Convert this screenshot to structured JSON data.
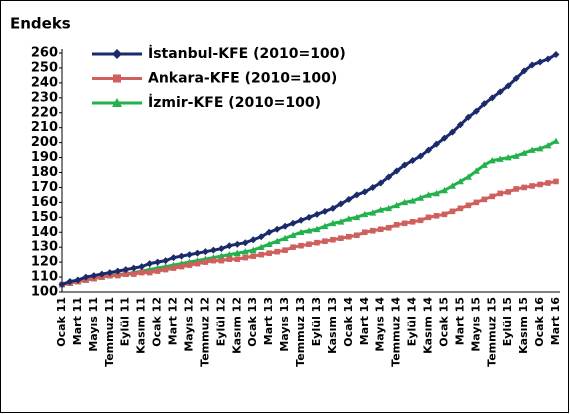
{
  "chart_data": {
    "type": "line",
    "title": "Endeks",
    "categories": [
      "Ocak 11",
      null,
      "Mart 11",
      null,
      "Mayıs 11",
      null,
      "Temmuz 11",
      null,
      "Eylül 11",
      null,
      "Kasım 11",
      null,
      "Ocak 12",
      null,
      "Mart 12",
      null,
      "Mayıs 12",
      null,
      "Temmuz 12",
      null,
      "Eylül 12",
      null,
      "Kasım 12",
      null,
      "Ocak 13",
      null,
      "Mart 13",
      null,
      "Mayıs 13",
      null,
      "Temmuz 13",
      null,
      "Eylül 13",
      null,
      "Kasım 13",
      null,
      "Ocak 14",
      null,
      "Mart 14",
      null,
      "Mayıs 14",
      null,
      "Temmuz 14",
      null,
      "Eylül 14",
      null,
      "Kasım 14",
      null,
      "Ocak 15",
      null,
      "Mart 15",
      null,
      "Mayıs 15",
      null,
      "Temmuz 15",
      null,
      "Eylül 15",
      null,
      "Kasım 15",
      null,
      "Ocak 16",
      null,
      "Mart 16"
    ],
    "series": [
      {
        "name": "İstanbul-KFE (2010=100)",
        "color": "#1b2a6b",
        "marker": "diamond",
        "values": [
          105,
          107,
          108,
          110,
          111,
          112,
          113,
          114,
          115,
          116,
          117,
          119,
          120,
          121,
          123,
          124,
          125,
          126,
          127,
          128,
          129,
          131,
          132,
          133,
          135,
          137,
          140,
          142,
          144,
          146,
          148,
          150,
          152,
          154,
          156,
          159,
          162,
          165,
          167,
          170,
          173,
          177,
          181,
          185,
          188,
          191,
          195,
          199,
          203,
          207,
          212,
          217,
          221,
          226,
          230,
          234,
          238,
          243,
          248,
          252,
          254,
          256,
          259
        ]
      },
      {
        "name": "Ankara-KFE (2010=100)",
        "color": "#d0605e",
        "marker": "square",
        "values": [
          105,
          106,
          107,
          108,
          109,
          110,
          111,
          111,
          112,
          112,
          113,
          113,
          114,
          115,
          116,
          117,
          118,
          119,
          120,
          121,
          121,
          122,
          122,
          123,
          124,
          125,
          126,
          127,
          128,
          130,
          131,
          132,
          133,
          134,
          135,
          136,
          137,
          138,
          140,
          141,
          142,
          143,
          145,
          146,
          147,
          148,
          150,
          151,
          152,
          154,
          156,
          158,
          160,
          162,
          164,
          166,
          167,
          169,
          170,
          171,
          172,
          173,
          174
        ]
      },
      {
        "name": "İzmir-KFE (2010=100)",
        "color": "#22b14c",
        "marker": "triangle",
        "values": [
          105,
          106,
          107,
          108,
          109,
          110,
          111,
          112,
          112,
          113,
          114,
          115,
          116,
          117,
          118,
          119,
          120,
          121,
          122,
          123,
          124,
          125,
          126,
          127,
          128,
          130,
          132,
          134,
          136,
          138,
          140,
          141,
          142,
          144,
          146,
          147,
          149,
          150,
          152,
          153,
          155,
          156,
          158,
          160,
          161,
          163,
          165,
          166,
          168,
          171,
          174,
          177,
          181,
          185,
          188,
          189,
          190,
          191,
          193,
          195,
          196,
          198,
          201
        ]
      }
    ],
    "ylim": [
      100,
      260
    ],
    "yticks": [
      100,
      110,
      120,
      130,
      140,
      150,
      160,
      170,
      180,
      190,
      200,
      210,
      220,
      230,
      240,
      250,
      260
    ],
    "grid": false,
    "legend": "top-left"
  }
}
